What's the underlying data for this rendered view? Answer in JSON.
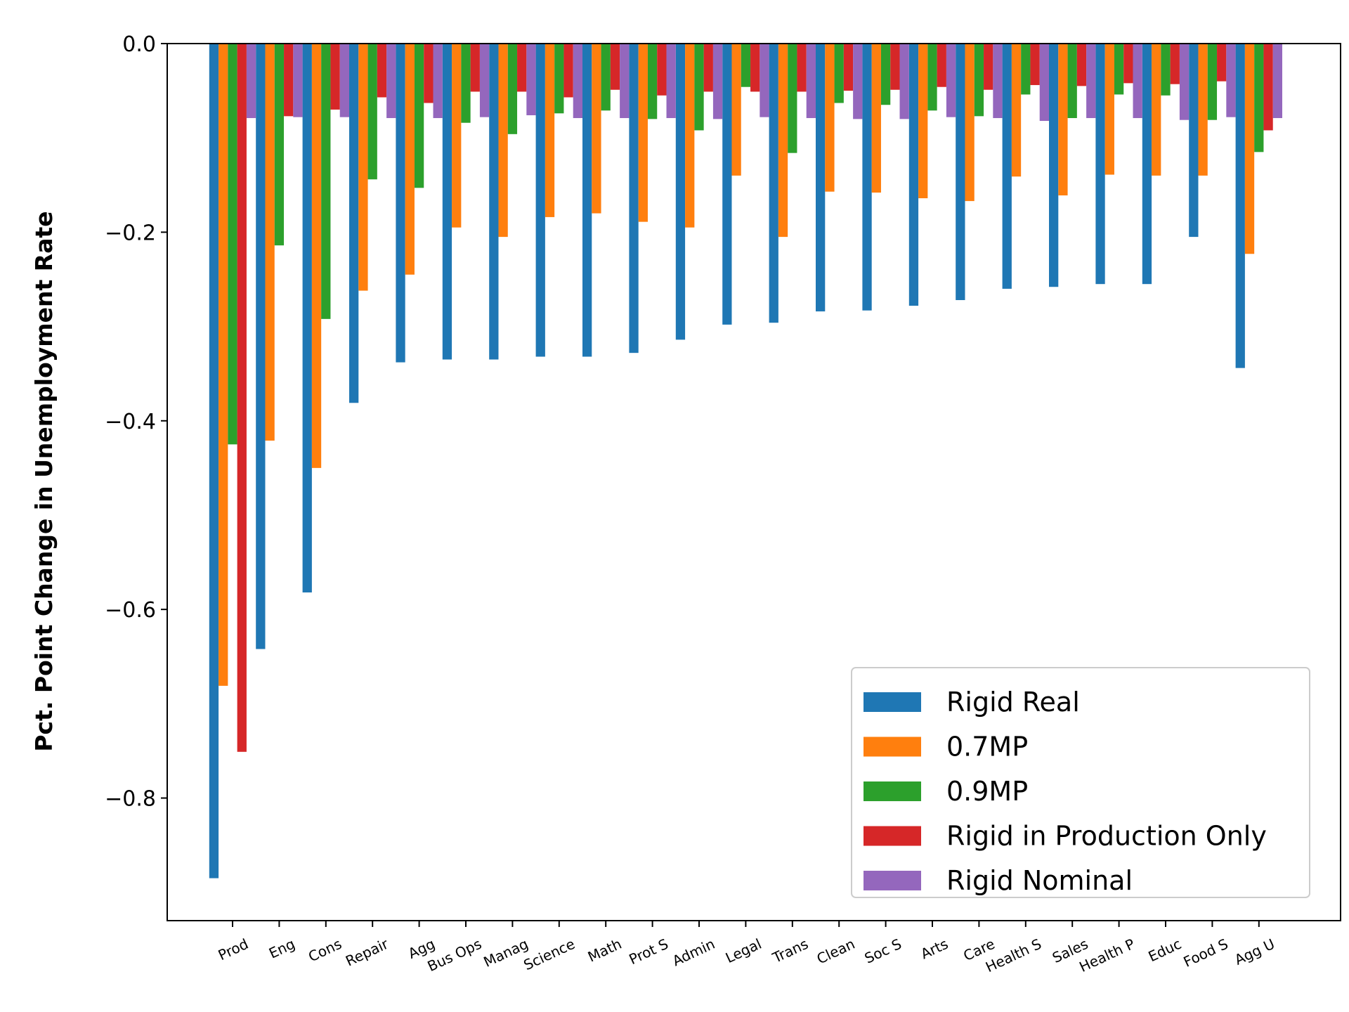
{
  "chart_data": {
    "type": "bar",
    "title": "",
    "xlabel": "",
    "ylabel": "Pct. Point Change in Unemployment Rate",
    "ylim": [
      -0.93,
      0.0
    ],
    "yticks": [
      0.0,
      -0.2,
      -0.4,
      -0.6,
      -0.8
    ],
    "ytick_labels": [
      "0.0",
      "−0.2",
      "−0.4",
      "−0.6",
      "−0.8"
    ],
    "grid": false,
    "legend_position": "bottom-right",
    "categories": [
      "Prod",
      "Eng",
      "Cons",
      "Repair",
      "Agg",
      "Bus Ops",
      "Manag",
      "Science",
      "Math",
      "Prot S",
      "Admin",
      "Legal",
      "Trans",
      "Clean",
      "Soc S",
      "Arts",
      "Care",
      "Health S",
      "Sales",
      "Health P",
      "Educ",
      "Food S",
      "Agg U"
    ],
    "series": [
      {
        "name": "Rigid Real",
        "color": "#1f77b4",
        "values": [
          -0.885,
          -0.642,
          -0.582,
          -0.381,
          -0.338,
          -0.335,
          -0.335,
          -0.332,
          -0.332,
          -0.328,
          -0.314,
          -0.298,
          -0.296,
          -0.284,
          -0.283,
          -0.278,
          -0.272,
          -0.26,
          -0.258,
          -0.255,
          -0.255,
          -0.205,
          -0.344
        ]
      },
      {
        "name": "0.7MP",
        "color": "#ff7f0e",
        "values": [
          -0.681,
          -0.421,
          -0.45,
          -0.262,
          -0.245,
          -0.195,
          -0.205,
          -0.184,
          -0.18,
          -0.189,
          -0.195,
          -0.14,
          -0.205,
          -0.157,
          -0.158,
          -0.164,
          -0.167,
          -0.141,
          -0.161,
          -0.139,
          -0.14,
          -0.14,
          -0.223
        ]
      },
      {
        "name": "0.9MP",
        "color": "#2ca02c",
        "values": [
          -0.425,
          -0.214,
          -0.292,
          -0.144,
          -0.153,
          -0.084,
          -0.096,
          -0.074,
          -0.071,
          -0.08,
          -0.092,
          -0.046,
          -0.116,
          -0.063,
          -0.065,
          -0.071,
          -0.077,
          -0.054,
          -0.079,
          -0.054,
          -0.055,
          -0.081,
          -0.115
        ]
      },
      {
        "name": "Rigid in Production Only",
        "color": "#d62728",
        "values": [
          -0.751,
          -0.077,
          -0.07,
          -0.057,
          -0.063,
          -0.051,
          -0.051,
          -0.057,
          -0.049,
          -0.055,
          -0.051,
          -0.051,
          -0.051,
          -0.05,
          -0.049,
          -0.046,
          -0.049,
          -0.044,
          -0.045,
          -0.042,
          -0.043,
          -0.04,
          -0.092
        ]
      },
      {
        "name": "Rigid Nominal",
        "color": "#9467bd",
        "values": [
          -0.079,
          -0.078,
          -0.078,
          -0.079,
          -0.079,
          -0.078,
          -0.076,
          -0.079,
          -0.079,
          -0.079,
          -0.08,
          -0.078,
          -0.079,
          -0.08,
          -0.08,
          -0.078,
          -0.079,
          -0.082,
          -0.079,
          -0.079,
          -0.081,
          -0.078,
          -0.079
        ]
      }
    ]
  }
}
